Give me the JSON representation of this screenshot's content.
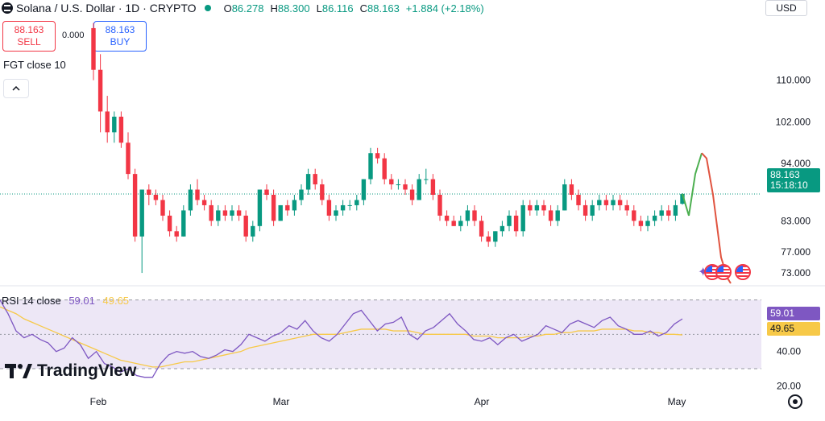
{
  "header": {
    "symbol": "Solana / U.S. Dollar · 1D · CRYPTO",
    "open_label": "O",
    "open": "86.278",
    "high_label": "H",
    "high": "88.300",
    "low_label": "L",
    "low": "86.116",
    "close_label": "C",
    "close": "88.163",
    "change": "+1.884 (+2.18%)",
    "currency": "USD"
  },
  "trade": {
    "sell_price": "88.163",
    "sell_label": "SELL",
    "buy_price": "88.163",
    "buy_label": "BUY",
    "spread": "0.000"
  },
  "indicator": {
    "label": "FGT close 10",
    "collapse_icon": "chevron-up-icon"
  },
  "rsi": {
    "label": "RSI 14 close",
    "value": "59.01",
    "ma_value": "49.65"
  },
  "last_price": {
    "value": "88.163",
    "countdown": "15:18:10"
  },
  "brand": "TradingView",
  "colors": {
    "up": "#089981",
    "down": "#f23645",
    "rsi": "#7e57c2",
    "rsi_ma": "#f7c948",
    "band": "#ede7f6"
  },
  "chart_data": [
    {
      "type": "candlestick",
      "price_axis": [
        "110.000",
        "102.000",
        "94.000",
        "83.000",
        "77.000",
        "73.000"
      ],
      "time_axis": [
        "Feb",
        "Mar",
        "Apr",
        "May"
      ],
      "ylim": [
        71,
        122
      ],
      "last_price": 88.163,
      "candles": [
        [
          120,
          121,
          110,
          112
        ],
        [
          112,
          115,
          100,
          104
        ],
        [
          104,
          107,
          98,
          100
        ],
        [
          100,
          104,
          98,
          103
        ],
        [
          103,
          104,
          97,
          98
        ],
        [
          98,
          100,
          91,
          92
        ],
        [
          92,
          93,
          79,
          80
        ],
        [
          80,
          89,
          73,
          89
        ],
        [
          89,
          90,
          86,
          88
        ],
        [
          88,
          89,
          86,
          87
        ],
        [
          87,
          88,
          83,
          84
        ],
        [
          84,
          85,
          80,
          81
        ],
        [
          81,
          82,
          79,
          80
        ],
        [
          80,
          86,
          80,
          85
        ],
        [
          85,
          90,
          84,
          89
        ],
        [
          89,
          91,
          86,
          87
        ],
        [
          87,
          88,
          85,
          86
        ],
        [
          86,
          87,
          82,
          83
        ],
        [
          83,
          86,
          82,
          85
        ],
        [
          85,
          86,
          83,
          84
        ],
        [
          84,
          86,
          83,
          85
        ],
        [
          85,
          86,
          83,
          84
        ],
        [
          84,
          85,
          79,
          80
        ],
        [
          80,
          83,
          79,
          82
        ],
        [
          82,
          89,
          81,
          89
        ],
        [
          89,
          90,
          87,
          88
        ],
        [
          88,
          89,
          82,
          83
        ],
        [
          83,
          86,
          83,
          86
        ],
        [
          86,
          87,
          84,
          85
        ],
        [
          85,
          88,
          84,
          87
        ],
        [
          87,
          90,
          86,
          89
        ],
        [
          89,
          93,
          88,
          92
        ],
        [
          92,
          93,
          89,
          90
        ],
        [
          90,
          91,
          86,
          87
        ],
        [
          87,
          88,
          83,
          84
        ],
        [
          84,
          86,
          83,
          85
        ],
        [
          85,
          87,
          84,
          86
        ],
        [
          86,
          87,
          85,
          86
        ],
        [
          86,
          88,
          85,
          87
        ],
        [
          87,
          91,
          86,
          91
        ],
        [
          91,
          97,
          90,
          96
        ],
        [
          96,
          97,
          94,
          95
        ],
        [
          95,
          96,
          90,
          91
        ],
        [
          91,
          92,
          89,
          90
        ],
        [
          90,
          91,
          89,
          90
        ],
        [
          90,
          91,
          88,
          89
        ],
        [
          89,
          90,
          86,
          87
        ],
        [
          87,
          92,
          87,
          91
        ],
        [
          91,
          93,
          90,
          91
        ],
        [
          91,
          92,
          87,
          88
        ],
        [
          88,
          89,
          83,
          84
        ],
        [
          84,
          85,
          82,
          83
        ],
        [
          83,
          84,
          82,
          82
        ],
        [
          82,
          84,
          81,
          83
        ],
        [
          83,
          86,
          82,
          85
        ],
        [
          85,
          86,
          82,
          83
        ],
        [
          83,
          84,
          79,
          80
        ],
        [
          80,
          81,
          78,
          79
        ],
        [
          79,
          81,
          78,
          81
        ],
        [
          81,
          83,
          80,
          82
        ],
        [
          82,
          85,
          81,
          84
        ],
        [
          84,
          85,
          80,
          81
        ],
        [
          81,
          87,
          80,
          86
        ],
        [
          86,
          87,
          84,
          85
        ],
        [
          85,
          87,
          84,
          86
        ],
        [
          86,
          87,
          84,
          85
        ],
        [
          85,
          86,
          82,
          83
        ],
        [
          83,
          86,
          82,
          85
        ],
        [
          85,
          91,
          85,
          90
        ],
        [
          90,
          91,
          87,
          88
        ],
        [
          88,
          89,
          85,
          86
        ],
        [
          86,
          87,
          83,
          84
        ],
        [
          84,
          87,
          83,
          86
        ],
        [
          86,
          88,
          85,
          87
        ],
        [
          87,
          88,
          85,
          86
        ],
        [
          86,
          88,
          85,
          87
        ],
        [
          87,
          88,
          85,
          86
        ],
        [
          86,
          87,
          84,
          85
        ],
        [
          85,
          86,
          82,
          83
        ],
        [
          83,
          84,
          81,
          82
        ],
        [
          82,
          84,
          81,
          83
        ],
        [
          83,
          85,
          82,
          84
        ],
        [
          84,
          86,
          83,
          85
        ],
        [
          85,
          86,
          83,
          84
        ],
        [
          84,
          87,
          83,
          86
        ],
        [
          86.278,
          88.3,
          86.116,
          88.163
        ]
      ],
      "projection": [
        88.163,
        84,
        92,
        96,
        95,
        88,
        76,
        72,
        71
      ]
    },
    {
      "type": "line",
      "name": "RSI 14 close",
      "ylim": [
        15,
        75
      ],
      "bands": [
        30,
        50,
        70
      ],
      "axis_ticks": [
        "40.00",
        "20.00"
      ],
      "rsi": [
        70,
        62,
        52,
        48,
        50,
        47,
        45,
        40,
        42,
        48,
        44,
        36,
        40,
        33,
        31,
        28,
        30,
        26,
        25,
        25,
        33,
        38,
        40,
        39,
        40,
        37,
        36,
        38,
        41,
        40,
        44,
        50,
        48,
        46,
        49,
        51,
        55,
        53,
        58,
        52,
        48,
        46,
        50,
        56,
        62,
        64,
        58,
        52,
        56,
        57,
        60,
        50,
        47,
        52,
        54,
        58,
        62,
        56,
        52,
        47,
        46,
        48,
        44,
        48,
        50,
        46,
        48,
        50,
        55,
        53,
        51,
        56,
        58,
        56,
        54,
        58,
        60,
        55,
        53,
        50,
        50,
        52,
        49,
        51,
        56,
        59.01
      ],
      "rsi_ma": [
        66,
        64,
        62,
        59,
        57,
        55,
        53,
        51,
        49,
        47,
        45,
        43,
        41,
        39,
        37,
        35,
        34,
        33,
        32,
        31,
        31,
        32,
        33,
        34,
        34,
        35,
        36,
        37,
        38,
        39,
        40,
        42,
        43,
        44,
        45,
        46,
        47,
        48,
        49,
        50,
        50,
        50,
        50,
        51,
        52,
        53,
        53,
        53,
        53,
        52,
        52,
        52,
        51,
        50,
        50,
        50,
        50,
        50,
        50,
        49,
        49,
        49,
        48,
        48,
        48,
        48,
        49,
        49,
        50,
        50,
        51,
        51,
        52,
        52,
        52,
        53,
        53,
        53,
        53,
        52,
        52,
        51,
        51,
        50,
        50,
        49.65
      ]
    }
  ]
}
